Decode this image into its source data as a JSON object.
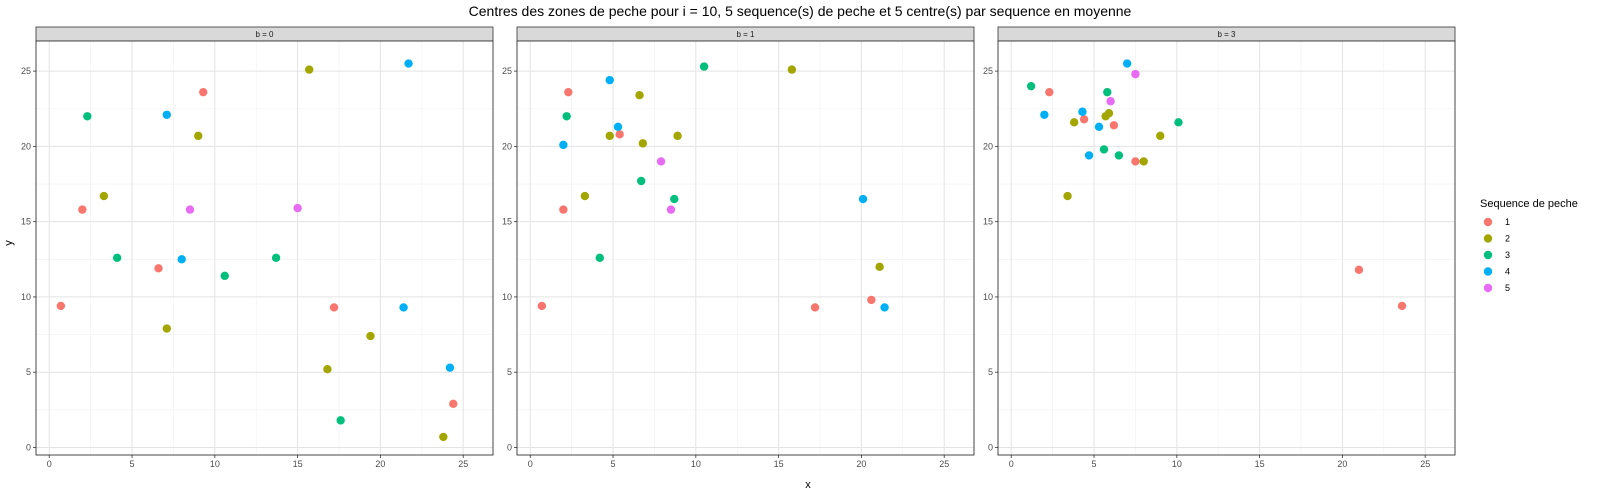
{
  "chart_data": {
    "type": "scatter",
    "title": "Centres des zones de peche pour i = 10, 5 sequence(s) de peche et 5 centre(s) par sequence en moyenne",
    "xlabel": "x",
    "ylabel": "y",
    "xlim": [
      -0.8,
      26.8
    ],
    "ylim": [
      -0.5,
      27
    ],
    "x_ticks": [
      0,
      5,
      10,
      15,
      20,
      25
    ],
    "y_ticks": [
      0,
      5,
      10,
      15,
      20,
      25
    ],
    "grid": true,
    "legend": {
      "title": "Sequence de peche",
      "placement": "right",
      "entries": [
        {
          "label": "1",
          "color": "#F8766D"
        },
        {
          "label": "2",
          "color": "#A3A500"
        },
        {
          "label": "3",
          "color": "#00BF7D"
        },
        {
          "label": "4",
          "color": "#00B0F6"
        },
        {
          "label": "5",
          "color": "#E76BF3"
        }
      ]
    },
    "panels": [
      {
        "label": "b = 0",
        "series": [
          {
            "name": "1",
            "points": [
              [
                0.7,
                9.4
              ],
              [
                2.0,
                15.8
              ],
              [
                6.6,
                11.9
              ],
              [
                9.3,
                23.6
              ],
              [
                17.2,
                9.3
              ],
              [
                24.4,
                2.9
              ]
            ]
          },
          {
            "name": "2",
            "points": [
              [
                3.3,
                16.7
              ],
              [
                7.1,
                7.9
              ],
              [
                9.0,
                20.7
              ],
              [
                15.7,
                25.1
              ],
              [
                16.8,
                5.2
              ],
              [
                19.4,
                7.4
              ],
              [
                23.8,
                0.7
              ]
            ]
          },
          {
            "name": "3",
            "points": [
              [
                2.3,
                22.0
              ],
              [
                4.1,
                12.6
              ],
              [
                10.6,
                11.4
              ],
              [
                13.7,
                12.6
              ],
              [
                17.6,
                1.8
              ]
            ]
          },
          {
            "name": "4",
            "points": [
              [
                7.1,
                22.1
              ],
              [
                8.0,
                12.5
              ],
              [
                21.4,
                9.3
              ],
              [
                21.7,
                25.5
              ],
              [
                24.2,
                5.3
              ]
            ]
          },
          {
            "name": "5",
            "points": [
              [
                8.5,
                15.8
              ],
              [
                15.0,
                15.9
              ]
            ]
          }
        ]
      },
      {
        "label": "b = 1",
        "series": [
          {
            "name": "1",
            "points": [
              [
                0.7,
                9.4
              ],
              [
                2.0,
                15.8
              ],
              [
                2.3,
                23.6
              ],
              [
                5.4,
                20.8
              ],
              [
                17.2,
                9.3
              ],
              [
                20.6,
                9.8
              ]
            ]
          },
          {
            "name": "2",
            "points": [
              [
                3.3,
                16.7
              ],
              [
                4.8,
                20.7
              ],
              [
                6.6,
                23.4
              ],
              [
                6.8,
                20.2
              ],
              [
                8.9,
                20.7
              ],
              [
                15.8,
                25.1
              ],
              [
                21.1,
                12.0
              ]
            ]
          },
          {
            "name": "3",
            "points": [
              [
                2.2,
                22.0
              ],
              [
                4.2,
                12.6
              ],
              [
                6.7,
                17.7
              ],
              [
                8.7,
                16.5
              ],
              [
                10.5,
                25.3
              ]
            ]
          },
          {
            "name": "4",
            "points": [
              [
                2.0,
                20.1
              ],
              [
                4.8,
                24.4
              ],
              [
                5.3,
                21.3
              ],
              [
                20.1,
                16.5
              ],
              [
                21.4,
                9.3
              ]
            ]
          },
          {
            "name": "5",
            "points": [
              [
                7.9,
                19.0
              ],
              [
                8.5,
                15.8
              ]
            ]
          }
        ]
      },
      {
        "label": "b = 3",
        "series": [
          {
            "name": "1",
            "points": [
              [
                2.3,
                23.6
              ],
              [
                4.4,
                21.8
              ],
              [
                6.2,
                21.4
              ],
              [
                7.5,
                19.0
              ],
              [
                21.0,
                11.8
              ],
              [
                23.6,
                9.4
              ]
            ]
          },
          {
            "name": "2",
            "points": [
              [
                3.4,
                16.7
              ],
              [
                3.8,
                21.6
              ],
              [
                5.7,
                22.0
              ],
              [
                5.9,
                22.2
              ],
              [
                8.0,
                19.0
              ],
              [
                9.0,
                20.7
              ]
            ]
          },
          {
            "name": "3",
            "points": [
              [
                1.2,
                24.0
              ],
              [
                5.6,
                19.8
              ],
              [
                5.8,
                23.6
              ],
              [
                6.5,
                19.4
              ],
              [
                10.1,
                21.6
              ]
            ]
          },
          {
            "name": "4",
            "points": [
              [
                2.0,
                22.1
              ],
              [
                4.3,
                22.3
              ],
              [
                4.7,
                19.4
              ],
              [
                5.3,
                21.3
              ],
              [
                7.0,
                25.5
              ]
            ]
          },
          {
            "name": "5",
            "points": [
              [
                6.0,
                23.0
              ],
              [
                7.5,
                24.8
              ]
            ]
          }
        ]
      }
    ]
  }
}
